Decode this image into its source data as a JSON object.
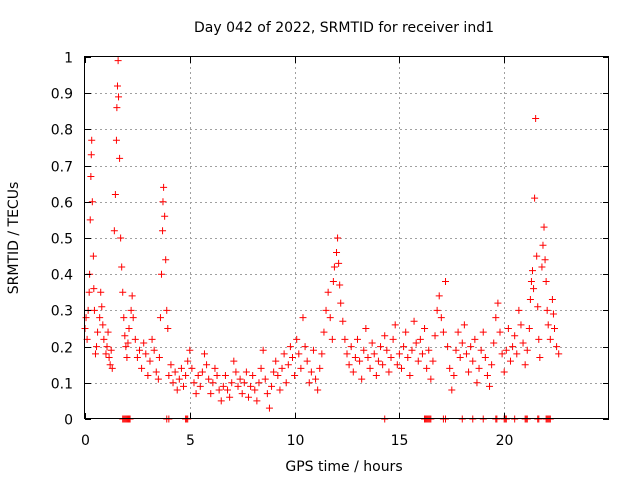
{
  "chart_data": {
    "type": "scatter",
    "title": "Day 042 of 2022, SRMTID for receiver ind1",
    "xlabel": "GPS time / hours",
    "ylabel": "SRMTID / TECUs",
    "xlim": [
      0,
      25
    ],
    "ylim": [
      0,
      1
    ],
    "xticks": [
      "0",
      "5",
      "10",
      "15",
      "20"
    ],
    "yticks": [
      "0",
      "0.1",
      "0.2",
      "0.3",
      "0.4",
      "0.5",
      "0.6",
      "0.7",
      "0.8",
      "0.9",
      "1"
    ],
    "grid": true,
    "marker": "+",
    "color": "#ff0000",
    "series": [
      {
        "name": "SRMTID",
        "points": [
          [
            0.0,
            0.25
          ],
          [
            0.05,
            0.28
          ],
          [
            0.1,
            0.22
          ],
          [
            0.15,
            0.3
          ],
          [
            0.2,
            0.35
          ],
          [
            0.22,
            0.4
          ],
          [
            0.25,
            0.55
          ],
          [
            0.28,
            0.67
          ],
          [
            0.3,
            0.73
          ],
          [
            0.32,
            0.77
          ],
          [
            0.35,
            0.6
          ],
          [
            0.4,
            0.45
          ],
          [
            0.42,
            0.36
          ],
          [
            0.45,
            0.3
          ],
          [
            0.5,
            0.18
          ],
          [
            0.55,
            0.2
          ],
          [
            0.6,
            0.24
          ],
          [
            0.7,
            0.28
          ],
          [
            0.75,
            0.35
          ],
          [
            0.8,
            0.31
          ],
          [
            0.85,
            0.26
          ],
          [
            0.9,
            0.22
          ],
          [
            1.0,
            0.18
          ],
          [
            1.05,
            0.2
          ],
          [
            1.1,
            0.24
          ],
          [
            1.15,
            0.17
          ],
          [
            1.2,
            0.15
          ],
          [
            1.25,
            0.19
          ],
          [
            1.3,
            0.14
          ],
          [
            1.4,
            0.52
          ],
          [
            1.45,
            0.62
          ],
          [
            1.5,
            0.77
          ],
          [
            1.52,
            0.86
          ],
          [
            1.55,
            0.92
          ],
          [
            1.58,
            0.99
          ],
          [
            1.6,
            0.89
          ],
          [
            1.65,
            0.72
          ],
          [
            1.7,
            0.5
          ],
          [
            1.75,
            0.42
          ],
          [
            1.8,
            0.35
          ],
          [
            1.85,
            0.28
          ],
          [
            1.9,
            0.23
          ],
          [
            1.95,
            0.2
          ],
          [
            2.0,
            0.17
          ],
          [
            2.05,
            0.21
          ],
          [
            2.1,
            0.25
          ],
          [
            2.2,
            0.3
          ],
          [
            2.25,
            0.34
          ],
          [
            2.3,
            0.28
          ],
          [
            2.4,
            0.22
          ],
          [
            2.5,
            0.17
          ],
          [
            2.6,
            0.19
          ],
          [
            2.7,
            0.14
          ],
          [
            2.8,
            0.21
          ],
          [
            2.9,
            0.18
          ],
          [
            3.0,
            0.12
          ],
          [
            3.1,
            0.16
          ],
          [
            3.2,
            0.22
          ],
          [
            3.3,
            0.19
          ],
          [
            3.4,
            0.13
          ],
          [
            3.5,
            0.11
          ],
          [
            3.55,
            0.17
          ],
          [
            3.6,
            0.28
          ],
          [
            3.65,
            0.4
          ],
          [
            3.7,
            0.52
          ],
          [
            3.72,
            0.6
          ],
          [
            3.75,
            0.64
          ],
          [
            3.8,
            0.56
          ],
          [
            3.85,
            0.44
          ],
          [
            3.9,
            0.3
          ],
          [
            3.95,
            0.25
          ],
          [
            4.0,
            0.12
          ],
          [
            4.1,
            0.15
          ],
          [
            4.2,
            0.1
          ],
          [
            4.3,
            0.13
          ],
          [
            4.4,
            0.08
          ],
          [
            4.5,
            0.11
          ],
          [
            4.6,
            0.14
          ],
          [
            4.7,
            0.09
          ],
          [
            4.8,
            0.12
          ],
          [
            4.9,
            0.16
          ],
          [
            5.0,
            0.19
          ],
          [
            5.1,
            0.14
          ],
          [
            5.2,
            0.1
          ],
          [
            5.3,
            0.07
          ],
          [
            5.4,
            0.12
          ],
          [
            5.5,
            0.09
          ],
          [
            5.6,
            0.13
          ],
          [
            5.7,
            0.18
          ],
          [
            5.8,
            0.15
          ],
          [
            5.9,
            0.11
          ],
          [
            6.0,
            0.07
          ],
          [
            6.1,
            0.1
          ],
          [
            6.2,
            0.14
          ],
          [
            6.3,
            0.12
          ],
          [
            6.4,
            0.08
          ],
          [
            6.5,
            0.05
          ],
          [
            6.6,
            0.09
          ],
          [
            6.7,
            0.12
          ],
          [
            6.8,
            0.08
          ],
          [
            6.9,
            0.06
          ],
          [
            7.0,
            0.1
          ],
          [
            7.1,
            0.16
          ],
          [
            7.2,
            0.13
          ],
          [
            7.3,
            0.09
          ],
          [
            7.4,
            0.11
          ],
          [
            7.5,
            0.07
          ],
          [
            7.6,
            0.1
          ],
          [
            7.7,
            0.13
          ],
          [
            7.8,
            0.06
          ],
          [
            7.9,
            0.09
          ],
          [
            8.0,
            0.12
          ],
          [
            8.1,
            0.08
          ],
          [
            8.2,
            0.05
          ],
          [
            8.3,
            0.1
          ],
          [
            8.4,
            0.14
          ],
          [
            8.5,
            0.19
          ],
          [
            8.6,
            0.11
          ],
          [
            8.7,
            0.07
          ],
          [
            8.8,
            0.03
          ],
          [
            8.9,
            0.09
          ],
          [
            9.0,
            0.13
          ],
          [
            9.1,
            0.16
          ],
          [
            9.2,
            0.12
          ],
          [
            9.3,
            0.08
          ],
          [
            9.4,
            0.14
          ],
          [
            9.5,
            0.18
          ],
          [
            9.6,
            0.1
          ],
          [
            9.7,
            0.15
          ],
          [
            9.8,
            0.2
          ],
          [
            9.9,
            0.17
          ],
          [
            10.0,
            0.12
          ],
          [
            10.1,
            0.22
          ],
          [
            10.2,
            0.18
          ],
          [
            10.3,
            0.14
          ],
          [
            10.4,
            0.28
          ],
          [
            10.5,
            0.2
          ],
          [
            10.6,
            0.16
          ],
          [
            10.7,
            0.1
          ],
          [
            10.8,
            0.13
          ],
          [
            10.9,
            0.19
          ],
          [
            11.0,
            0.11
          ],
          [
            11.1,
            0.08
          ],
          [
            11.2,
            0.14
          ],
          [
            11.3,
            0.18
          ],
          [
            11.4,
            0.24
          ],
          [
            11.5,
            0.3
          ],
          [
            11.6,
            0.35
          ],
          [
            11.7,
            0.28
          ],
          [
            11.8,
            0.22
          ],
          [
            11.85,
            0.38
          ],
          [
            11.9,
            0.42
          ],
          [
            12.0,
            0.46
          ],
          [
            12.05,
            0.5
          ],
          [
            12.1,
            0.43
          ],
          [
            12.15,
            0.37
          ],
          [
            12.2,
            0.32
          ],
          [
            12.3,
            0.27
          ],
          [
            12.4,
            0.22
          ],
          [
            12.5,
            0.18
          ],
          [
            12.6,
            0.15
          ],
          [
            12.7,
            0.2
          ],
          [
            12.8,
            0.13
          ],
          [
            12.9,
            0.17
          ],
          [
            13.0,
            0.22
          ],
          [
            13.1,
            0.16
          ],
          [
            13.2,
            0.11
          ],
          [
            13.3,
            0.19
          ],
          [
            13.4,
            0.25
          ],
          [
            13.5,
            0.17
          ],
          [
            13.6,
            0.14
          ],
          [
            13.7,
            0.21
          ],
          [
            13.8,
            0.18
          ],
          [
            13.9,
            0.12
          ],
          [
            14.0,
            0.16
          ],
          [
            14.1,
            0.2
          ],
          [
            14.2,
            0.15
          ],
          [
            14.3,
            0.23
          ],
          [
            14.4,
            0.19
          ],
          [
            14.5,
            0.13
          ],
          [
            14.6,
            0.17
          ],
          [
            14.7,
            0.22
          ],
          [
            14.8,
            0.26
          ],
          [
            14.9,
            0.15
          ],
          [
            15.0,
            0.18
          ],
          [
            15.1,
            0.14
          ],
          [
            15.2,
            0.2
          ],
          [
            15.3,
            0.24
          ],
          [
            15.4,
            0.17
          ],
          [
            15.5,
            0.12
          ],
          [
            15.6,
            0.19
          ],
          [
            15.7,
            0.27
          ],
          [
            15.8,
            0.21
          ],
          [
            15.9,
            0.16
          ],
          [
            16.0,
            0.22
          ],
          [
            16.1,
            0.18
          ],
          [
            16.2,
            0.25
          ],
          [
            16.3,
            0.14
          ],
          [
            16.4,
            0.19
          ],
          [
            16.5,
            0.11
          ],
          [
            16.6,
            0.16
          ],
          [
            16.7,
            0.23
          ],
          [
            16.8,
            0.3
          ],
          [
            16.9,
            0.34
          ],
          [
            17.0,
            0.28
          ],
          [
            17.1,
            0.24
          ],
          [
            17.2,
            0.38
          ],
          [
            17.3,
            0.2
          ],
          [
            17.4,
            0.14
          ],
          [
            17.5,
            0.08
          ],
          [
            17.6,
            0.12
          ],
          [
            17.7,
            0.19
          ],
          [
            17.8,
            0.24
          ],
          [
            17.9,
            0.17
          ],
          [
            18.0,
            0.21
          ],
          [
            18.1,
            0.26
          ],
          [
            18.2,
            0.18
          ],
          [
            18.3,
            0.13
          ],
          [
            18.4,
            0.2
          ],
          [
            18.5,
            0.16
          ],
          [
            18.6,
            0.22
          ],
          [
            18.7,
            0.1
          ],
          [
            18.8,
            0.14
          ],
          [
            18.9,
            0.19
          ],
          [
            19.0,
            0.24
          ],
          [
            19.1,
            0.17
          ],
          [
            19.2,
            0.12
          ],
          [
            19.3,
            0.09
          ],
          [
            19.4,
            0.15
          ],
          [
            19.5,
            0.21
          ],
          [
            19.6,
            0.28
          ],
          [
            19.7,
            0.32
          ],
          [
            19.8,
            0.24
          ],
          [
            19.9,
            0.18
          ],
          [
            20.0,
            0.13
          ],
          [
            20.1,
            0.19
          ],
          [
            20.2,
            0.25
          ],
          [
            20.3,
            0.16
          ],
          [
            20.4,
            0.2
          ],
          [
            20.5,
            0.23
          ],
          [
            20.6,
            0.18
          ],
          [
            20.7,
            0.3
          ],
          [
            20.8,
            0.26
          ],
          [
            20.9,
            0.21
          ],
          [
            21.0,
            0.15
          ],
          [
            21.1,
            0.19
          ],
          [
            21.2,
            0.25
          ],
          [
            21.25,
            0.33
          ],
          [
            21.3,
            0.38
          ],
          [
            21.35,
            0.41
          ],
          [
            21.4,
            0.36
          ],
          [
            21.45,
            0.61
          ],
          [
            21.5,
            0.83
          ],
          [
            21.55,
            0.45
          ],
          [
            21.6,
            0.31
          ],
          [
            21.65,
            0.22
          ],
          [
            21.7,
            0.17
          ],
          [
            21.8,
            0.42
          ],
          [
            21.85,
            0.48
          ],
          [
            21.9,
            0.53
          ],
          [
            21.95,
            0.44
          ],
          [
            22.0,
            0.38
          ],
          [
            22.05,
            0.3
          ],
          [
            22.1,
            0.26
          ],
          [
            22.2,
            0.22
          ],
          [
            22.3,
            0.33
          ],
          [
            22.35,
            0.29
          ],
          [
            22.4,
            0.25
          ],
          [
            22.5,
            0.2
          ],
          [
            22.6,
            0.18
          ]
        ]
      },
      {
        "name": "zero-values",
        "points": [
          [
            1.8,
            0
          ],
          [
            1.85,
            0
          ],
          [
            1.9,
            0
          ],
          [
            1.95,
            0
          ],
          [
            2.0,
            0
          ],
          [
            2.05,
            0
          ],
          [
            2.1,
            0
          ],
          [
            2.15,
            0
          ],
          [
            3.9,
            0
          ],
          [
            4.0,
            0
          ],
          [
            4.8,
            0
          ],
          [
            4.85,
            0
          ],
          [
            4.9,
            0
          ],
          [
            14.3,
            0
          ],
          [
            16.2,
            0
          ],
          [
            16.25,
            0
          ],
          [
            16.3,
            0
          ],
          [
            16.35,
            0
          ],
          [
            16.4,
            0
          ],
          [
            16.45,
            0
          ],
          [
            16.5,
            0
          ],
          [
            17.1,
            0
          ],
          [
            17.2,
            0
          ],
          [
            18.0,
            0
          ],
          [
            18.5,
            0
          ],
          [
            19.0,
            0
          ],
          [
            19.6,
            0
          ],
          [
            19.65,
            0
          ],
          [
            20.0,
            0
          ],
          [
            20.05,
            0
          ],
          [
            20.1,
            0
          ],
          [
            20.5,
            0
          ],
          [
            21.0,
            0
          ],
          [
            21.05,
            0
          ],
          [
            21.1,
            0
          ],
          [
            21.6,
            0
          ],
          [
            21.65,
            0
          ],
          [
            22.0,
            0
          ],
          [
            22.05,
            0
          ],
          [
            22.1,
            0
          ],
          [
            22.15,
            0
          ],
          [
            22.2,
            0
          ]
        ]
      }
    ]
  }
}
